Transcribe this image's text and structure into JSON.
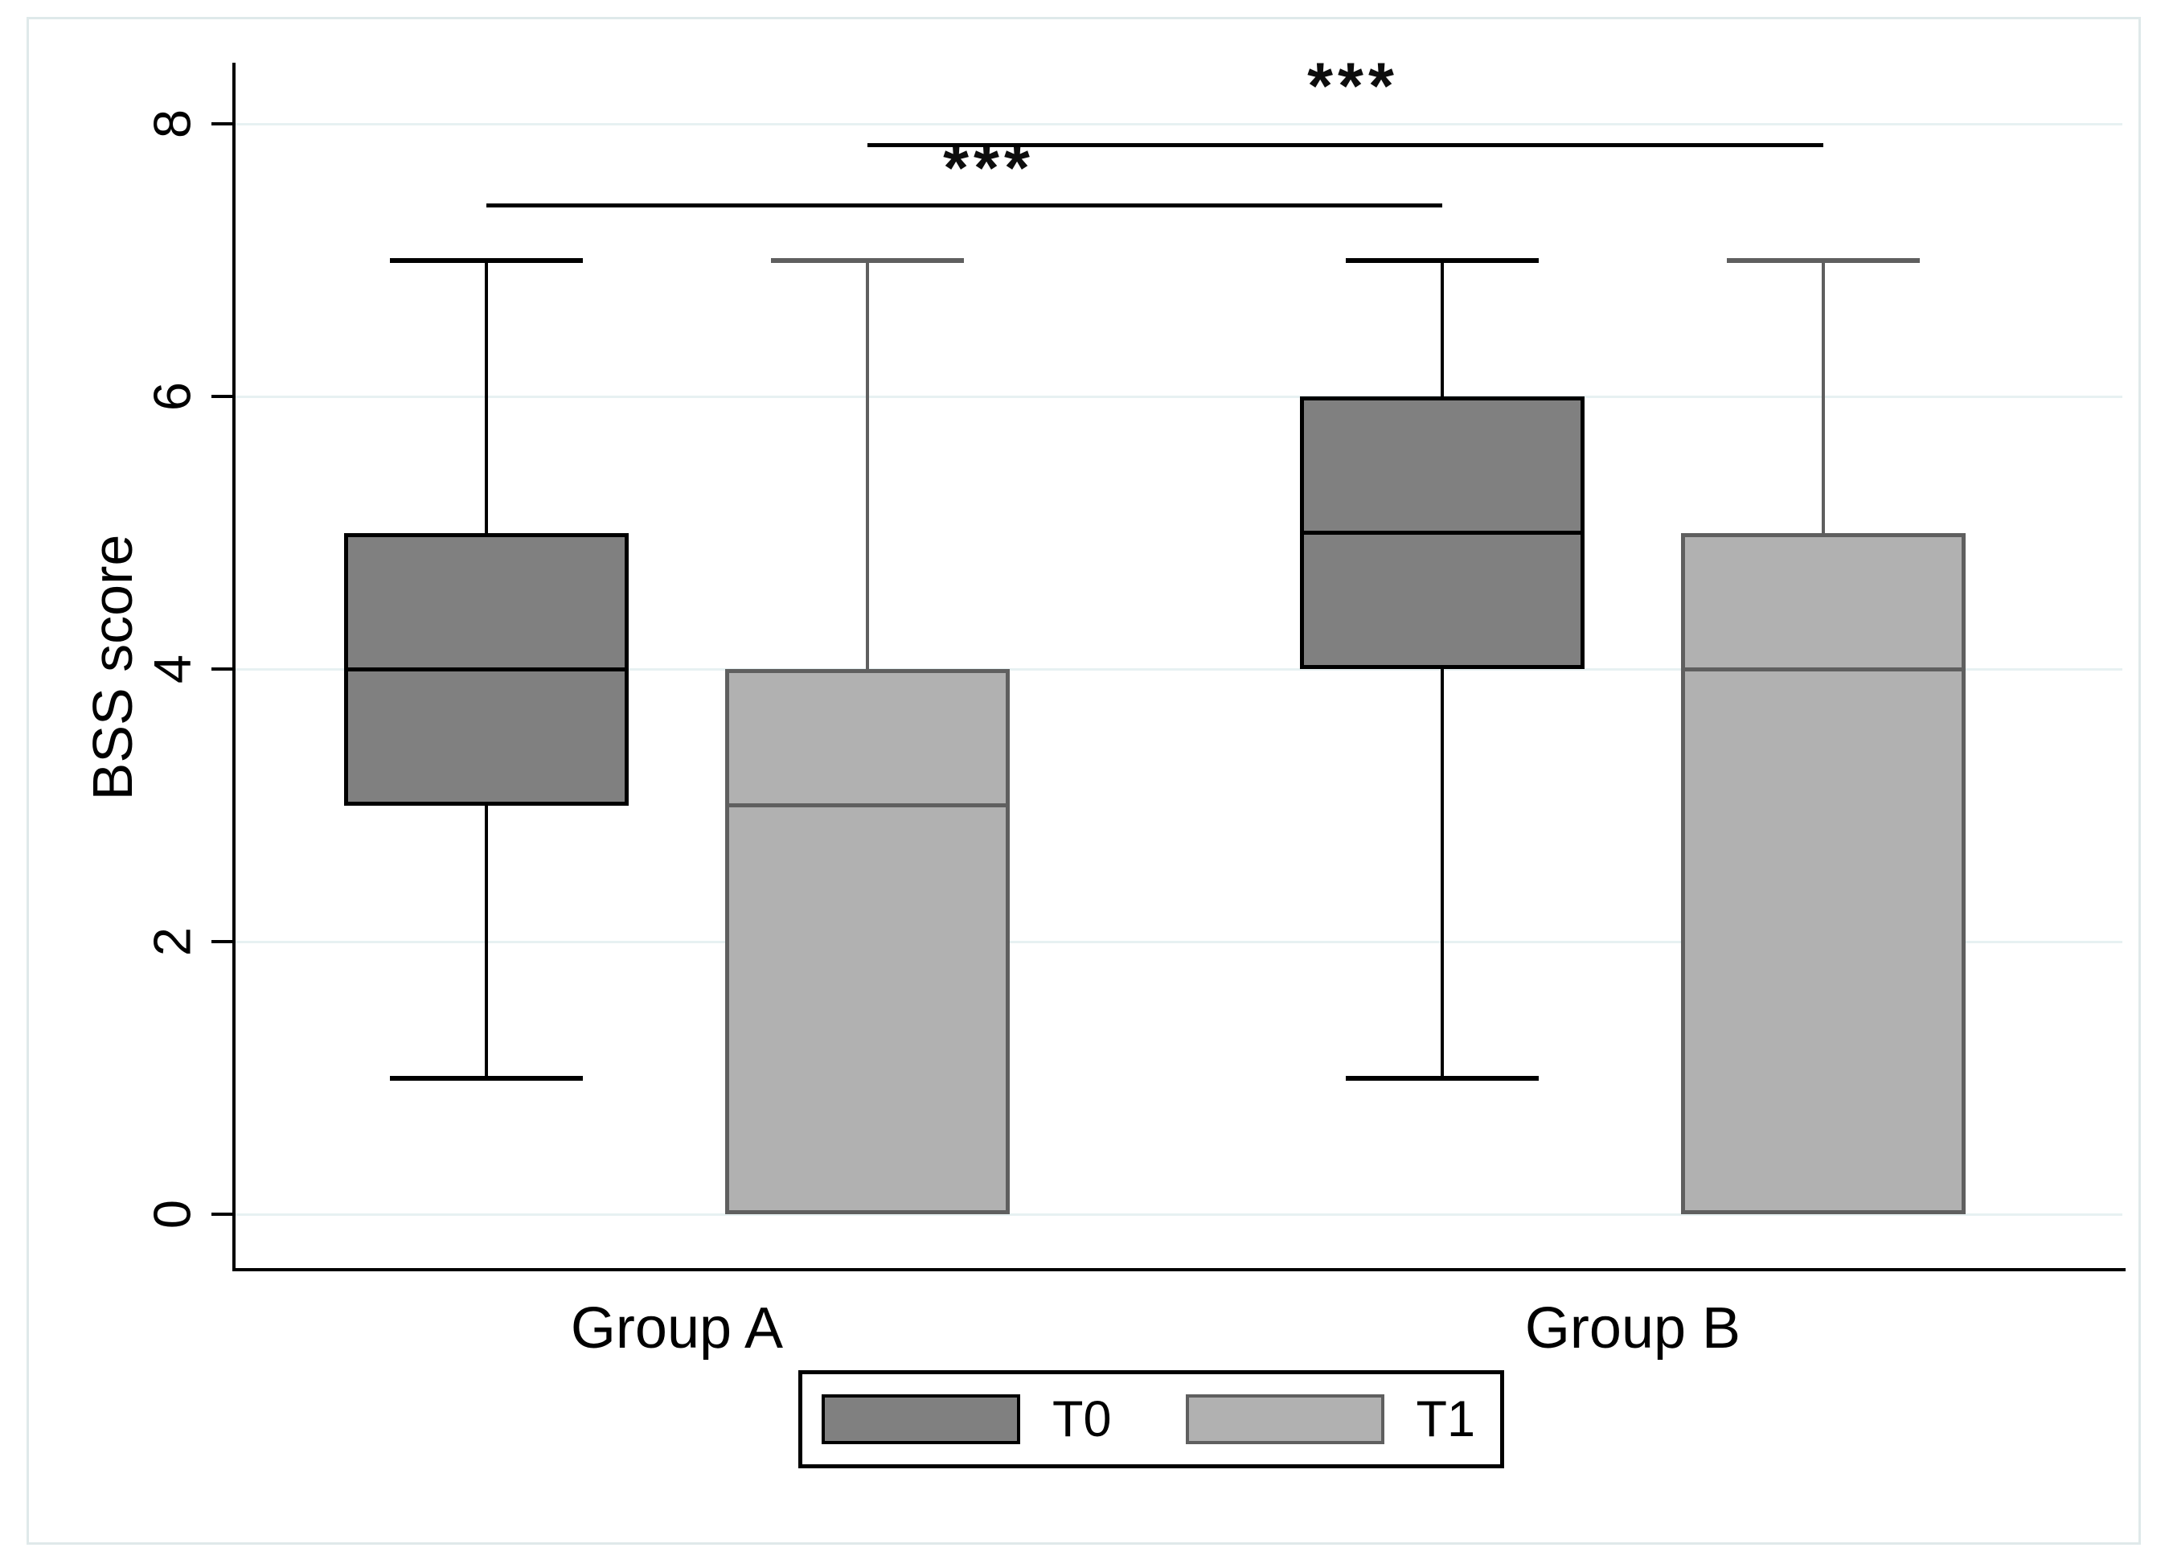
{
  "chart_data": {
    "type": "box",
    "title": "",
    "ylabel": "BSS score",
    "xlabel": "",
    "yticks": [
      8,
      6,
      4,
      2,
      0
    ],
    "ylim": [
      -0.4,
      8.4
    ],
    "grid": true,
    "legend_position": "bottom-center",
    "categories": [
      "Group A",
      "Group B"
    ],
    "series": [
      {
        "name": "T0",
        "fill": "#808080",
        "stroke": "#000000",
        "boxes": [
          {
            "category": "Group A",
            "min": 1,
            "q1": 3,
            "median": 4,
            "q3": 5,
            "max": 7
          },
          {
            "category": "Group B",
            "min": 1,
            "q1": 4,
            "median": 5,
            "q3": 6,
            "max": 7
          }
        ]
      },
      {
        "name": "T1",
        "fill": "#b1b1b1",
        "stroke": "#5f5f5f",
        "boxes": [
          {
            "category": "Group A",
            "min": 0,
            "q1": 0,
            "median": 3,
            "q3": 4,
            "max": 7
          },
          {
            "category": "Group B",
            "min": 0,
            "q1": 0,
            "median": 4,
            "q3": 5,
            "max": 7
          }
        ]
      }
    ],
    "annotations": [
      {
        "label": "***",
        "from_category": 0,
        "from_series": 0,
        "to_category": 1,
        "to_series": 0
      },
      {
        "label": "***",
        "from_category": 0,
        "from_series": 1,
        "to_category": 1,
        "to_series": 1
      }
    ]
  },
  "colors": {
    "box_t0_fill": "#808080",
    "box_t0_stroke": "#000000",
    "box_t1_fill": "#b1b1b1",
    "box_t1_stroke": "#5f5f5f",
    "gridline": "#e7f1f2",
    "outer_frame": "#dfe9ea",
    "axis": "#000000"
  }
}
